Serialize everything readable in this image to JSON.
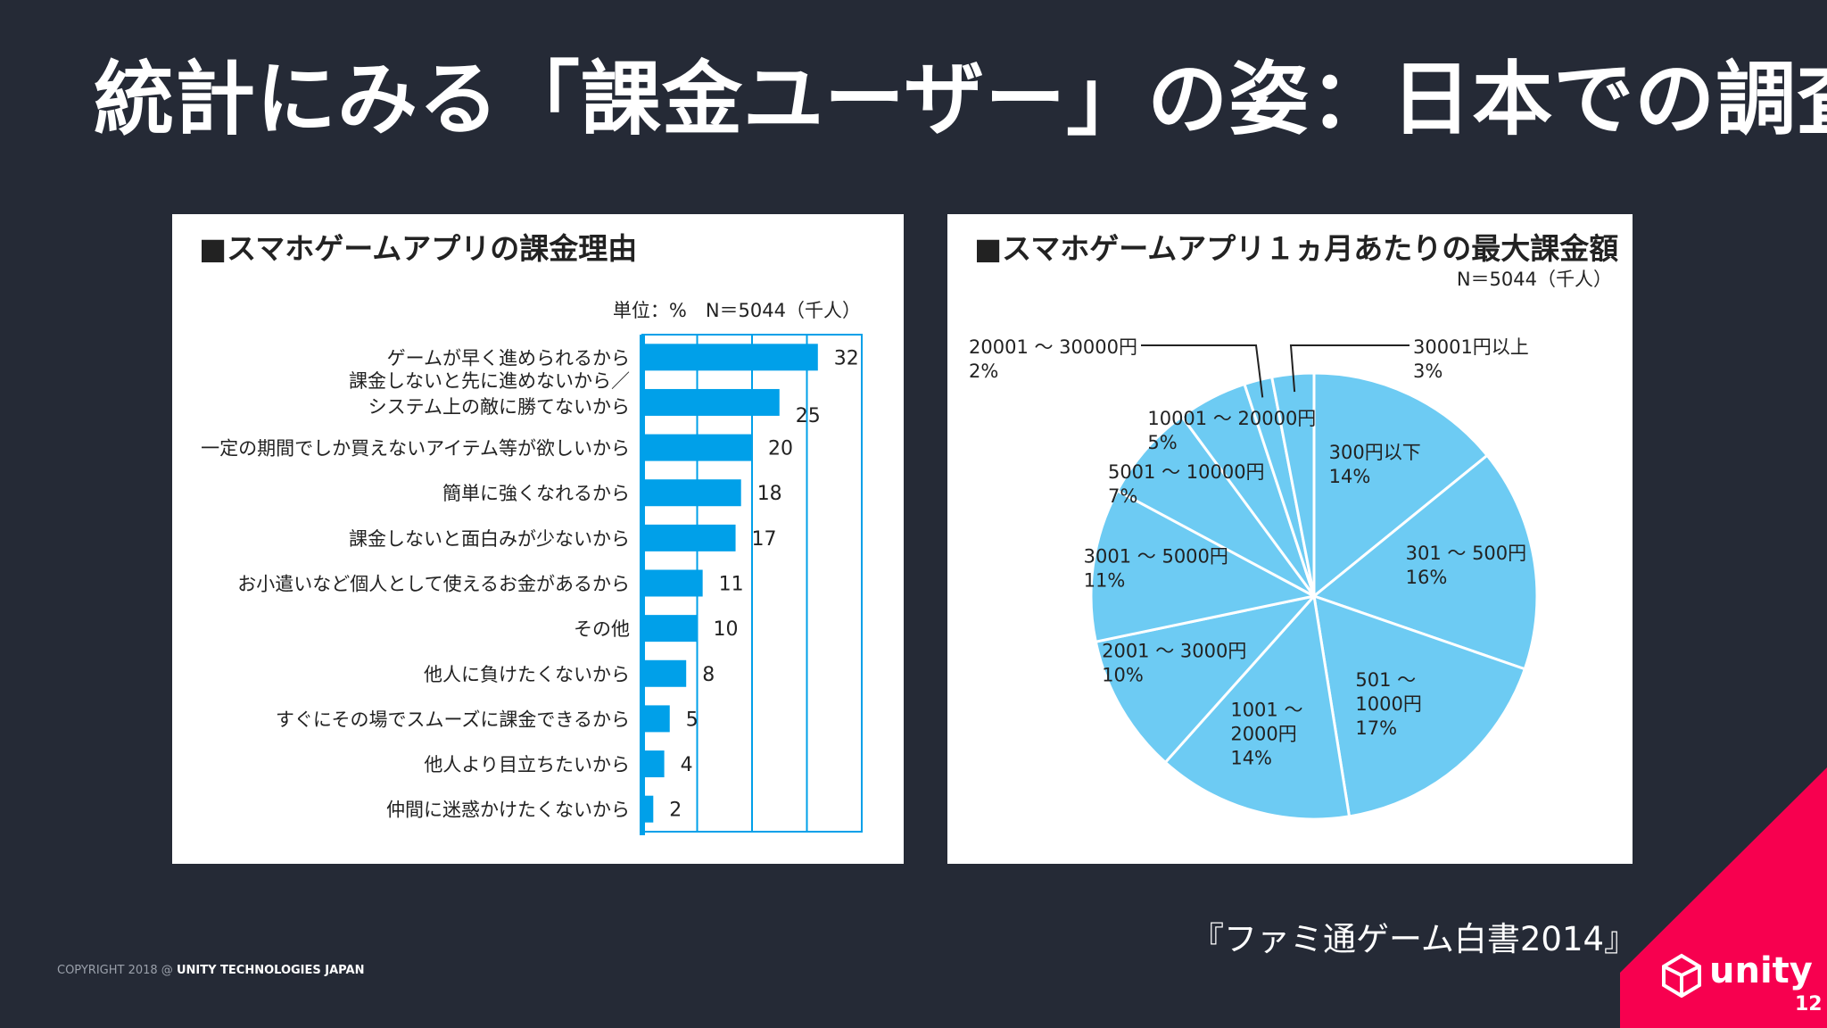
{
  "slide": {
    "title": "統計にみる「課金ユーザー」の姿：日本での調査",
    "source": "『ファミ通ゲーム白書2014』",
    "copyright_prefix": "COPYRIGHT 2018 @ ",
    "copyright_company": "UNITY TECHNOLOGIES JAPAN",
    "logo_text": "unity",
    "page_number": "12"
  },
  "chart_data": [
    {
      "type": "bar",
      "orientation": "horizontal",
      "title": "■スマホゲームアプリの課金理由",
      "note": "単位：%　N＝5044（千人）",
      "categories": [
        [
          "ゲームが早く進められるから"
        ],
        [
          "課金しないと先に進めないから／",
          "システム上の敵に勝てないから"
        ],
        [
          "一定の期間でしか買えないアイテム等が欲しいから"
        ],
        [
          "簡単に強くなれるから"
        ],
        [
          "課金しないと面白みが少ないから"
        ],
        [
          "お小遣いなど個人として使えるお金があるから"
        ],
        [
          "その他"
        ],
        [
          "他人に負けたくないから"
        ],
        [
          "すぐにその場でスムーズに課金できるから"
        ],
        [
          "他人より目立ちたいから"
        ],
        [
          "仲間に迷惑かけたくないから"
        ]
      ],
      "values": [
        32,
        25,
        20,
        18,
        17,
        11,
        10,
        8,
        5,
        4,
        2
      ],
      "xlim": [
        0,
        40
      ],
      "grid": true,
      "color": "#00a0e9"
    },
    {
      "type": "pie",
      "title": "■スマホゲームアプリ１ヵ月あたりの最大課金額",
      "note": "N＝5044（千人）",
      "color": "#6dcbf3",
      "slices": [
        {
          "label": "300円以下",
          "value": 14
        },
        {
          "label": "301 ～ 500円",
          "value": 16
        },
        {
          "label": "501 ～ 1000円",
          "label_lines": [
            "501 ～",
            "1000円"
          ],
          "value": 17
        },
        {
          "label": "1001 ～ 2000円",
          "label_lines": [
            "1001 ～",
            "2000円"
          ],
          "value": 14
        },
        {
          "label": "2001 ～ 3000円",
          "value": 10
        },
        {
          "label": "3001 ～ 5000円",
          "value": 11
        },
        {
          "label": "5001 ～ 10000円",
          "value": 7
        },
        {
          "label": "10001 ～ 20000円",
          "value": 5
        },
        {
          "label": "20001 ～ 30000円",
          "value": 2
        },
        {
          "label": "30001円以上",
          "value": 3
        }
      ]
    }
  ]
}
